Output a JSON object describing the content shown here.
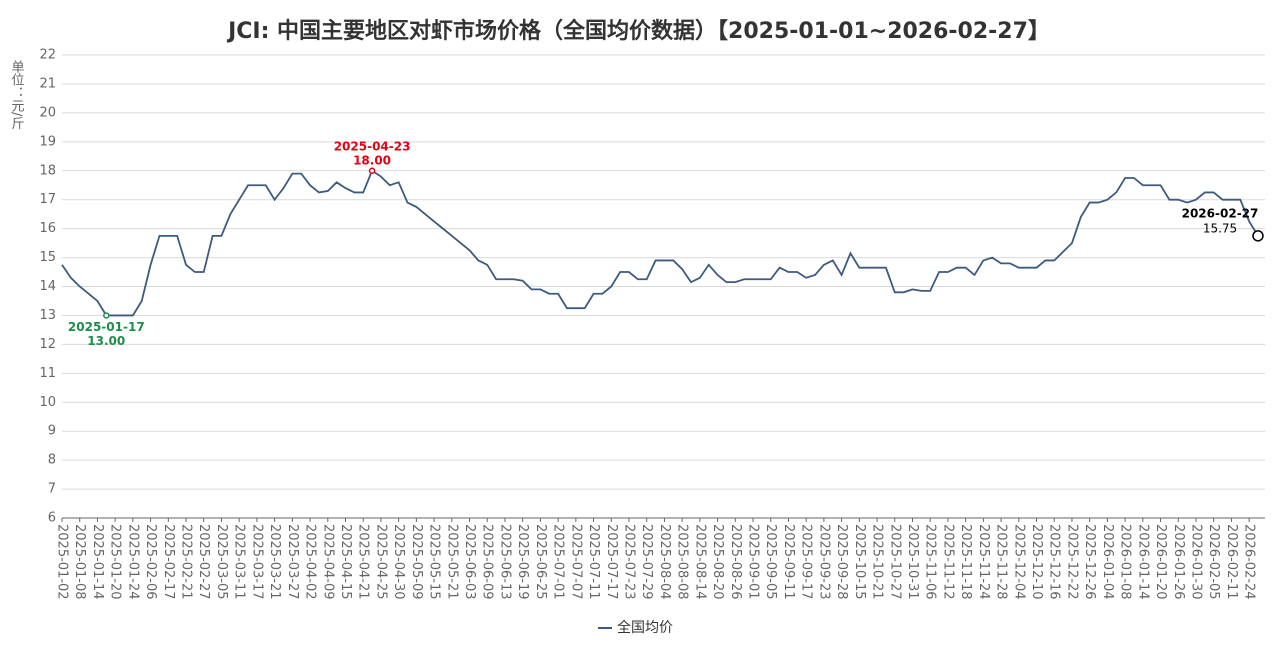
{
  "chart_data": {
    "type": "line",
    "title": "JCI: 中国主要地区对虾市场价格（全国均价数据）【2025-01-01~2026-02-27】",
    "y_label": "单位：元/斤",
    "categories": [
      "2025-01-02",
      null,
      "2025-01-08",
      null,
      "2025-01-14",
      null,
      "2025-01-20",
      null,
      "2025-01-24",
      null,
      "2025-02-06",
      null,
      "2025-02-17",
      null,
      "2025-02-21",
      null,
      "2025-02-27",
      null,
      "2025-03-05",
      null,
      "2025-03-11",
      null,
      "2025-03-17",
      null,
      "2025-03-21",
      null,
      "2025-03-27",
      null,
      "2025-04-02",
      null,
      "2025-04-09",
      null,
      "2025-04-15",
      null,
      "2025-04-21",
      null,
      "2025-04-25",
      null,
      "2025-04-30",
      null,
      "2025-05-09",
      null,
      "2025-05-15",
      null,
      "2025-05-21",
      null,
      "2025-06-03",
      null,
      "2025-06-09",
      null,
      "2025-06-13",
      null,
      "2025-06-19",
      null,
      "2025-06-25",
      null,
      "2025-07-01",
      null,
      "2025-07-07",
      null,
      "2025-07-11",
      null,
      "2025-07-17",
      null,
      "2025-07-23",
      null,
      "2025-07-29",
      null,
      "2025-08-04",
      null,
      "2025-08-08",
      null,
      "2025-08-14",
      null,
      "2025-08-20",
      null,
      "2025-08-26",
      null,
      "2025-09-01",
      null,
      "2025-09-05",
      null,
      "2025-09-11",
      null,
      "2025-09-17",
      null,
      "2025-09-23",
      null,
      "2025-09-28",
      null,
      "2025-10-15",
      null,
      "2025-10-21",
      null,
      "2025-10-27",
      null,
      "2025-10-31",
      null,
      "2025-11-06",
      null,
      "2025-11-12",
      null,
      "2025-11-18",
      null,
      "2025-11-24",
      null,
      "2025-11-28",
      null,
      "2025-12-04",
      null,
      "2025-12-10",
      null,
      "2025-12-16",
      null,
      "2025-12-22",
      null,
      "2025-12-26",
      null,
      "2026-01-04",
      null,
      "2026-01-08",
      null,
      "2026-01-14",
      null,
      "2026-01-20",
      null,
      "2026-01-26",
      null,
      "2026-01-30",
      null,
      "2026-02-05",
      null,
      "2026-02-11",
      null,
      "2026-02-24",
      null
    ],
    "series": [
      {
        "name": "全国均价",
        "color": "#3d5a80",
        "values": [
          14.75,
          14.3,
          14.0,
          13.75,
          13.5,
          13.0,
          13.0,
          13.0,
          13.0,
          13.5,
          14.75,
          15.75,
          15.75,
          15.75,
          14.75,
          14.5,
          14.5,
          15.75,
          15.75,
          16.5,
          17.0,
          17.5,
          17.5,
          17.5,
          17.0,
          17.4,
          17.9,
          17.9,
          17.5,
          17.25,
          17.3,
          17.6,
          17.4,
          17.25,
          17.25,
          18.0,
          17.8,
          17.5,
          17.6,
          16.9,
          16.75,
          16.5,
          16.25,
          16.0,
          15.75,
          15.5,
          15.25,
          14.9,
          14.75,
          14.25,
          14.25,
          14.25,
          14.2,
          13.9,
          13.9,
          13.75,
          13.75,
          13.25,
          13.25,
          13.25,
          13.75,
          13.75,
          14.0,
          14.5,
          14.5,
          14.25,
          14.25,
          14.9,
          14.9,
          14.9,
          14.6,
          14.15,
          14.3,
          14.75,
          14.4,
          14.15,
          14.15,
          14.25,
          14.25,
          14.25,
          14.25,
          14.65,
          14.5,
          14.5,
          14.3,
          14.4,
          14.75,
          14.9,
          14.4,
          15.15,
          14.65,
          14.65,
          14.65,
          14.65,
          13.8,
          13.8,
          13.9,
          13.85,
          13.85,
          14.5,
          14.5,
          14.65,
          14.65,
          14.4,
          14.9,
          15.0,
          14.8,
          14.8,
          14.65,
          14.65,
          14.65,
          14.9,
          14.9,
          15.2,
          15.5,
          16.4,
          16.9,
          16.9,
          17.0,
          17.25,
          17.75,
          17.75,
          17.5,
          17.5,
          17.5,
          17.0,
          17.0,
          16.9,
          17.0,
          17.25,
          17.25,
          17.0,
          17.0,
          17.0,
          16.25,
          15.75
        ]
      }
    ],
    "annotations": {
      "min": {
        "label": "2025-01-17",
        "value": 13,
        "value_label": "13.00",
        "color": "#1e8c4a"
      },
      "max": {
        "label": "2025-04-23",
        "value": 18,
        "value_label": "18.00",
        "color": "#e60012"
      },
      "last": {
        "label": "2026-02-27",
        "value": 15.75,
        "value_label": "15.75",
        "color": "#000000"
      }
    },
    "ylim": [
      6,
      22
    ],
    "yticks": [
      6,
      7,
      8,
      9,
      10,
      11,
      12,
      13,
      14,
      15,
      16,
      17,
      18,
      19,
      20,
      21,
      22
    ],
    "grid": true
  }
}
